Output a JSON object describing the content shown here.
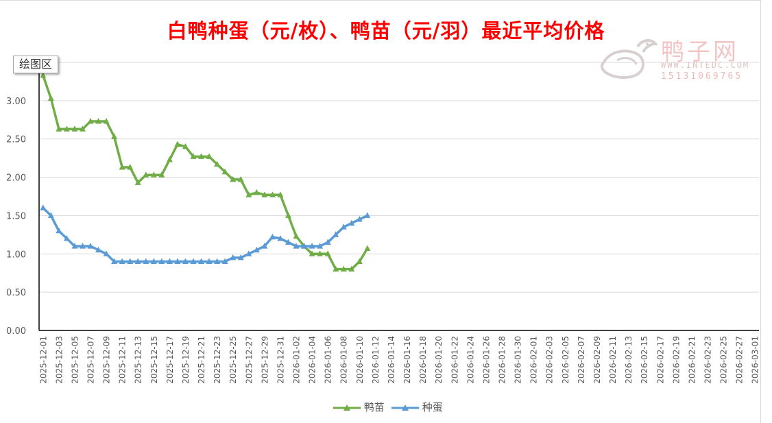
{
  "title": "白鸭种蛋（元/枚）、鸭苗（元/羽）最近平均价格",
  "watermark": {
    "name": "鸭子网",
    "url": "WWW.INTEDC.COM",
    "phone": "15131069765"
  },
  "plot_area_label": "绘图区",
  "colors": {
    "title": "#ff0000",
    "duckling": "#70ad47",
    "egg": "#5b9bd5",
    "grid": "#d9d9d9",
    "axis": "#000000"
  },
  "chart_data": {
    "type": "line",
    "title": "白鸭种蛋（元/枚）、鸭苗（元/羽）最近平均价格",
    "xlabel": "",
    "ylabel": "",
    "ylim": [
      0,
      3.5
    ],
    "y_ticks": [
      "0.00",
      "0.50",
      "1.00",
      "1.50",
      "2.00",
      "2.50",
      "3.00",
      "3"
    ],
    "grid": true,
    "legend_position": "bottom",
    "x_tick_labels": [
      "2025-12-01",
      "2025-12-03",
      "2025-12-05",
      "2025-12-07",
      "2025-12-09",
      "2025-12-11",
      "2025-12-13",
      "2025-12-15",
      "2025-12-17",
      "2025-12-19",
      "2025-12-21",
      "2025-12-23",
      "2025-12-25",
      "2025-12-27",
      "2025-12-29",
      "2025-12-31",
      "2026-01-02",
      "2026-01-04",
      "2026-01-06",
      "2026-01-08",
      "2026-01-10",
      "2026-01-12",
      "2026-01-14",
      "2026-01-16",
      "2026-01-18",
      "2026-01-20",
      "2026-01-22",
      "2026-01-24",
      "2026-01-26",
      "2026-01-28",
      "2026-01-30",
      "2026-02-01",
      "2026-02-03",
      "2026-02-05",
      "2026-02-07",
      "2026-02-09",
      "2026-02-11",
      "2026-02-13",
      "2026-02-15",
      "2026-02-17",
      "2026-02-19",
      "2026-02-21",
      "2026-02-23",
      "2026-02-25",
      "2026-02-27",
      "2026-03-01"
    ],
    "x": [
      "2025-12-01",
      "2025-12-02",
      "2025-12-03",
      "2025-12-04",
      "2025-12-05",
      "2025-12-06",
      "2025-12-07",
      "2025-12-08",
      "2025-12-09",
      "2025-12-10",
      "2025-12-11",
      "2025-12-12",
      "2025-12-13",
      "2025-12-14",
      "2025-12-15",
      "2025-12-16",
      "2025-12-17",
      "2025-12-18",
      "2025-12-19",
      "2025-12-20",
      "2025-12-21",
      "2025-12-22",
      "2025-12-23",
      "2025-12-24",
      "2025-12-25",
      "2025-12-26",
      "2025-12-27",
      "2025-12-28",
      "2025-12-29",
      "2025-12-30",
      "2025-12-31",
      "2026-01-01",
      "2026-01-02",
      "2026-01-03",
      "2026-01-04",
      "2026-01-05",
      "2026-01-06",
      "2026-01-07",
      "2026-01-08",
      "2026-01-09",
      "2026-01-10",
      "2026-01-11"
    ],
    "series": [
      {
        "name": "鸭苗",
        "color": "#70ad47",
        "marker": "triangle",
        "values": [
          3.33,
          3.03,
          2.63,
          2.63,
          2.63,
          2.63,
          2.73,
          2.73,
          2.73,
          2.53,
          2.13,
          2.13,
          1.93,
          2.03,
          2.03,
          2.03,
          2.23,
          2.43,
          2.4,
          2.27,
          2.27,
          2.27,
          2.17,
          2.07,
          1.97,
          1.97,
          1.77,
          1.8,
          1.77,
          1.77,
          1.77,
          1.5,
          1.23,
          1.1,
          1.0,
          1.0,
          1.0,
          0.8,
          0.8,
          0.8,
          0.9,
          1.07
        ]
      },
      {
        "name": "种蛋",
        "color": "#5b9bd5",
        "marker": "triangle",
        "values": [
          1.6,
          1.5,
          1.3,
          1.2,
          1.1,
          1.1,
          1.1,
          1.05,
          1.0,
          0.9,
          0.9,
          0.9,
          0.9,
          0.9,
          0.9,
          0.9,
          0.9,
          0.9,
          0.9,
          0.9,
          0.9,
          0.9,
          0.9,
          0.9,
          0.95,
          0.95,
          1.0,
          1.05,
          1.1,
          1.22,
          1.2,
          1.15,
          1.1,
          1.1,
          1.1,
          1.1,
          1.15,
          1.25,
          1.35,
          1.4,
          1.45,
          1.5
        ]
      }
    ]
  }
}
